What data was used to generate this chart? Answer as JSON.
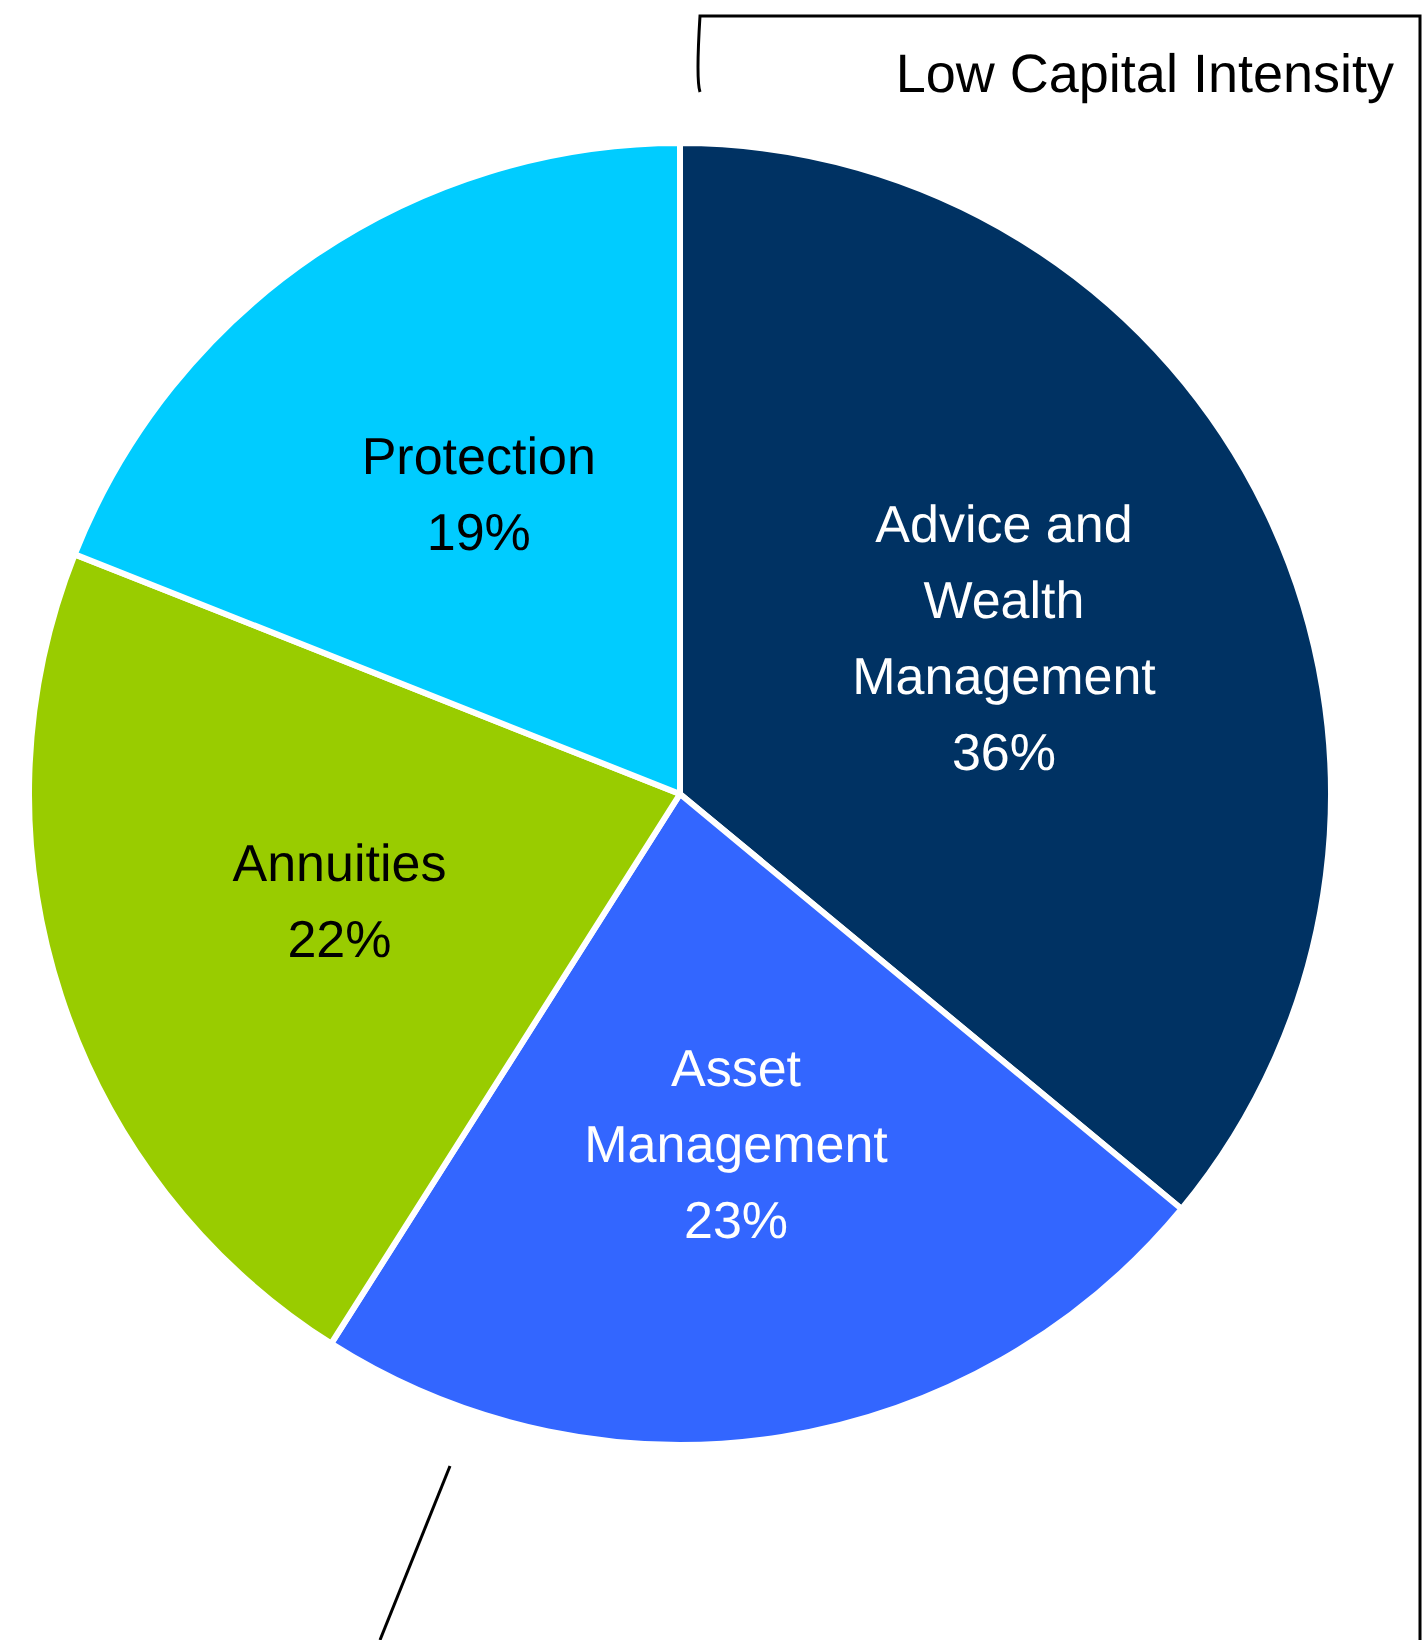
{
  "chart_data": {
    "type": "pie",
    "categories": [
      "Advice and Wealth Management",
      "Asset Management",
      "Annuities",
      "Protection"
    ],
    "values": [
      36,
      23,
      22,
      19
    ],
    "value_labels": [
      "36%",
      "23%",
      "22%",
      "19%"
    ],
    "colors": [
      "#003263",
      "#3366ff",
      "#99cc00",
      "#00ccff"
    ],
    "annotations": [
      "Low Capital Intensity"
    ]
  }
}
